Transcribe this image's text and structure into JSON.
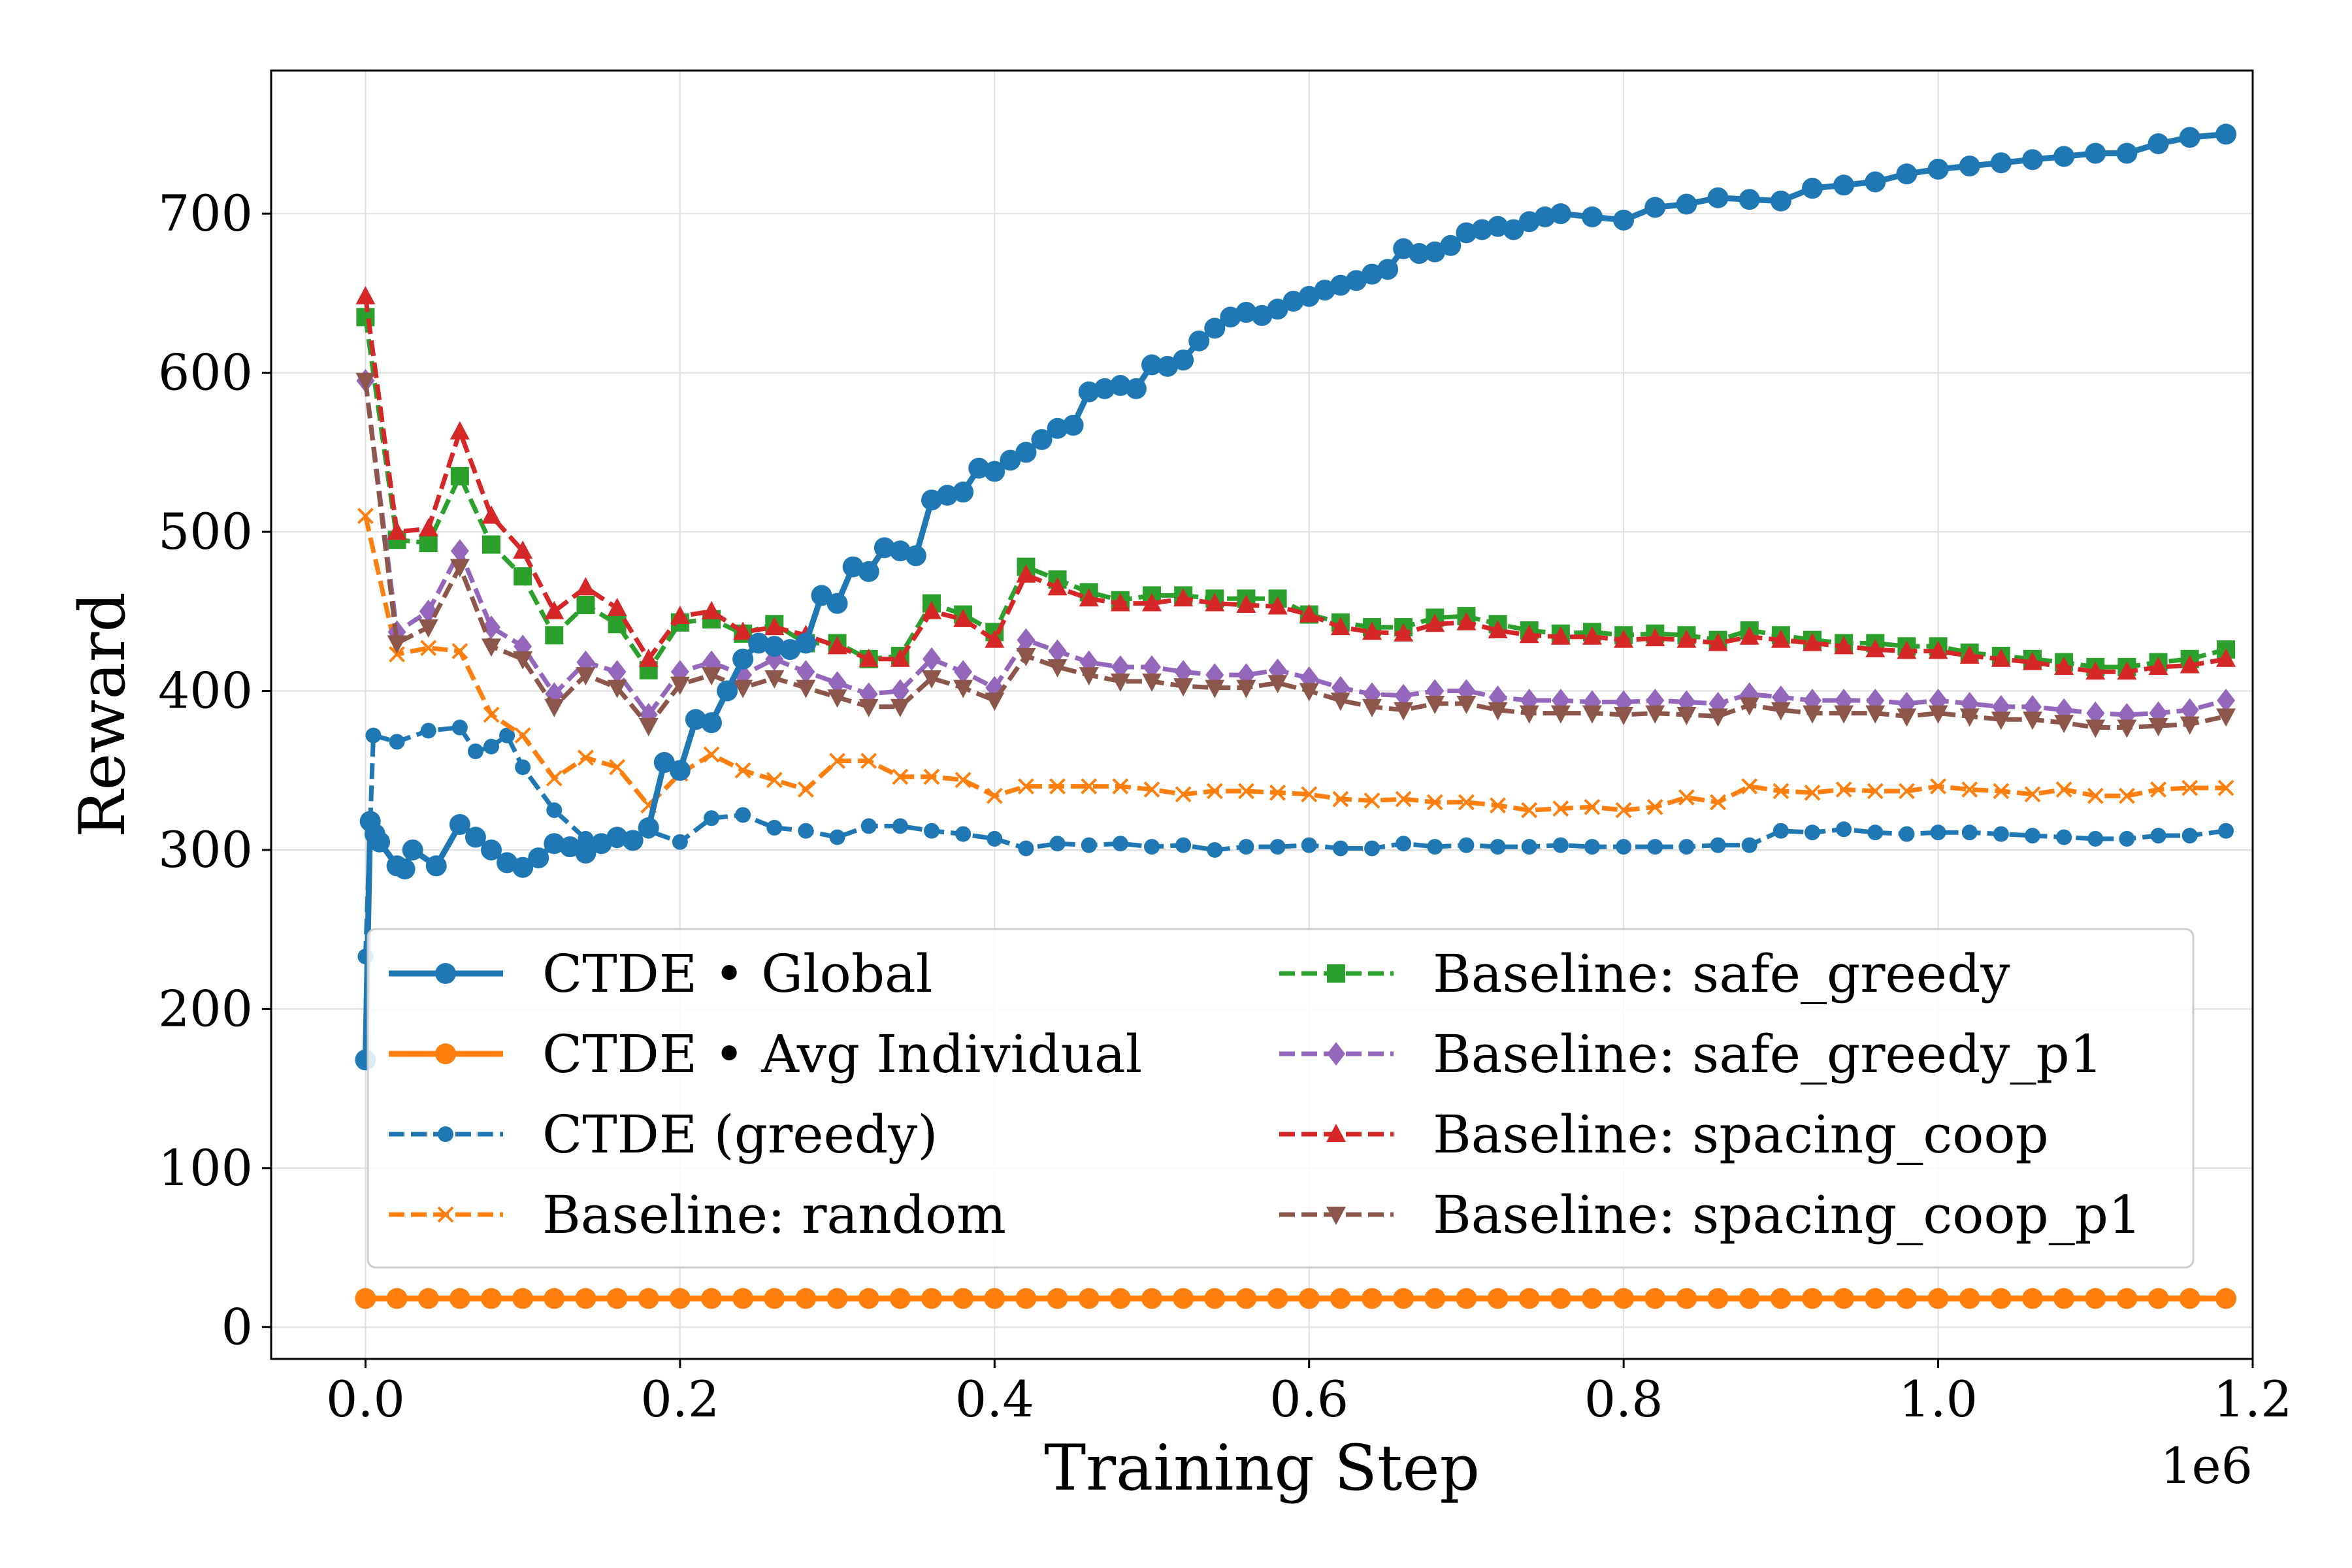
{
  "chart_data": {
    "type": "line",
    "xlabel": "Training Step",
    "ylabel": "Reward",
    "x_offset_label": "1e6",
    "xlim": [
      -0.06,
      1.2
    ],
    "ylim": [
      -20,
      790
    ],
    "xticks": [
      0.0,
      0.2,
      0.4,
      0.6,
      0.8,
      1.0,
      1.2
    ],
    "xtick_labels": [
      "0.0",
      "0.2",
      "0.4",
      "0.6",
      "0.8",
      "1.0",
      "1.2"
    ],
    "yticks": [
      0,
      100,
      200,
      300,
      400,
      500,
      600,
      700
    ],
    "ytick_labels": [
      "0",
      "100",
      "200",
      "300",
      "400",
      "500",
      "600",
      "700"
    ],
    "grid": true,
    "legend_position": "lower-center",
    "series": [
      {
        "name": "CTDE • Global",
        "color": "#1f77b4",
        "linestyle": "solid",
        "marker": "circle",
        "x": [
          0.0,
          0.003,
          0.006,
          0.009,
          0.02,
          0.025,
          0.03,
          0.045,
          0.06,
          0.07,
          0.08,
          0.09,
          0.1,
          0.11,
          0.12,
          0.13,
          0.14,
          0.15,
          0.16,
          0.17,
          0.18,
          0.19,
          0.2,
          0.21,
          0.22,
          0.23,
          0.24,
          0.25,
          0.26,
          0.27,
          0.28,
          0.29,
          0.3,
          0.31,
          0.32,
          0.33,
          0.34,
          0.35,
          0.36,
          0.37,
          0.38,
          0.39,
          0.4,
          0.41,
          0.42,
          0.43,
          0.44,
          0.45,
          0.46,
          0.47,
          0.48,
          0.49,
          0.5,
          0.51,
          0.52,
          0.53,
          0.54,
          0.55,
          0.56,
          0.57,
          0.58,
          0.59,
          0.6,
          0.61,
          0.62,
          0.63,
          0.64,
          0.65,
          0.66,
          0.67,
          0.68,
          0.69,
          0.7,
          0.71,
          0.72,
          0.73,
          0.74,
          0.75,
          0.76,
          0.78,
          0.8,
          0.82,
          0.84,
          0.86,
          0.88,
          0.9,
          0.92,
          0.94,
          0.96,
          0.98,
          1.0,
          1.02,
          1.04,
          1.06,
          1.08,
          1.1,
          1.12,
          1.14,
          1.16,
          1.183
        ],
        "y": [
          168,
          318,
          310,
          305,
          290,
          288,
          300,
          290,
          316,
          308,
          300,
          292,
          289,
          295,
          304,
          302,
          298,
          304,
          308,
          306,
          314,
          355,
          350,
          382,
          380,
          400,
          420,
          430,
          428,
          426,
          430,
          460,
          455,
          478,
          475,
          490,
          488,
          485,
          520,
          523,
          525,
          540,
          538,
          545,
          550,
          558,
          565,
          567,
          588,
          590,
          592,
          590,
          605,
          604,
          608,
          620,
          628,
          635,
          638,
          636,
          640,
          645,
          648,
          652,
          655,
          658,
          662,
          665,
          678,
          675,
          676,
          680,
          688,
          690,
          692,
          690,
          695,
          698,
          700,
          698,
          696,
          704,
          706,
          710,
          709,
          708,
          716,
          718,
          720,
          725,
          728,
          730,
          732,
          734,
          736,
          738,
          738,
          744,
          748,
          750
        ]
      },
      {
        "name": "CTDE • Avg Individual",
        "color": "#ff7f0e",
        "linestyle": "solid",
        "marker": "circle",
        "x": [
          0.0,
          0.02,
          0.04,
          0.06,
          0.08,
          0.1,
          0.12,
          0.14,
          0.16,
          0.18,
          0.2,
          0.22,
          0.24,
          0.26,
          0.28,
          0.3,
          0.32,
          0.34,
          0.36,
          0.38,
          0.4,
          0.42,
          0.44,
          0.46,
          0.48,
          0.5,
          0.52,
          0.54,
          0.56,
          0.58,
          0.6,
          0.62,
          0.64,
          0.66,
          0.68,
          0.7,
          0.72,
          0.74,
          0.76,
          0.78,
          0.8,
          0.82,
          0.84,
          0.86,
          0.88,
          0.9,
          0.92,
          0.94,
          0.96,
          0.98,
          1.0,
          1.02,
          1.04,
          1.06,
          1.08,
          1.1,
          1.12,
          1.14,
          1.16,
          1.183
        ],
        "y": [
          18,
          18,
          18,
          18,
          18,
          18,
          18,
          18,
          18,
          18,
          18,
          18,
          18,
          18,
          18,
          18,
          18,
          18,
          18,
          18,
          18,
          18,
          18,
          18,
          18,
          18,
          18,
          18,
          18,
          18,
          18,
          18,
          18,
          18,
          18,
          18,
          18,
          18,
          18,
          18,
          18,
          18,
          18,
          18,
          18,
          18,
          18,
          18,
          18,
          18,
          18,
          18,
          18,
          18,
          18,
          18,
          18,
          18,
          18,
          18
        ]
      },
      {
        "name": "CTDE (greedy)",
        "color": "#1f77b4",
        "linestyle": "dashed",
        "marker": "circle-small",
        "x": [
          0.0,
          0.005,
          0.02,
          0.04,
          0.06,
          0.07,
          0.08,
          0.09,
          0.1,
          0.12,
          0.14,
          0.16,
          0.18,
          0.2,
          0.22,
          0.24,
          0.26,
          0.28,
          0.3,
          0.32,
          0.34,
          0.36,
          0.38,
          0.4,
          0.42,
          0.44,
          0.46,
          0.48,
          0.5,
          0.52,
          0.54,
          0.56,
          0.58,
          0.6,
          0.62,
          0.64,
          0.66,
          0.68,
          0.7,
          0.72,
          0.74,
          0.76,
          0.78,
          0.8,
          0.82,
          0.84,
          0.86,
          0.88,
          0.9,
          0.92,
          0.94,
          0.96,
          0.98,
          1.0,
          1.02,
          1.04,
          1.06,
          1.08,
          1.1,
          1.12,
          1.14,
          1.16,
          1.183
        ],
        "y": [
          233,
          372,
          368,
          375,
          377,
          362,
          365,
          372,
          352,
          325,
          307,
          306,
          312,
          305,
          320,
          322,
          314,
          312,
          308,
          315,
          315,
          312,
          310,
          307,
          301,
          304,
          303,
          304,
          302,
          303,
          300,
          302,
          302,
          303,
          301,
          301,
          304,
          302,
          303,
          302,
          302,
          303,
          302,
          302,
          302,
          302,
          303,
          303,
          312,
          311,
          313,
          311,
          310,
          311,
          311,
          310,
          309,
          308,
          307,
          307,
          309,
          309,
          312
        ]
      },
      {
        "name": "Baseline: random",
        "color": "#ff7f0e",
        "linestyle": "dashed",
        "marker": "x",
        "x": [
          0.0,
          0.02,
          0.04,
          0.06,
          0.08,
          0.1,
          0.12,
          0.14,
          0.16,
          0.18,
          0.2,
          0.22,
          0.24,
          0.26,
          0.28,
          0.3,
          0.32,
          0.34,
          0.36,
          0.38,
          0.4,
          0.42,
          0.44,
          0.46,
          0.48,
          0.5,
          0.52,
          0.54,
          0.56,
          0.58,
          0.6,
          0.62,
          0.64,
          0.66,
          0.68,
          0.7,
          0.72,
          0.74,
          0.76,
          0.78,
          0.8,
          0.82,
          0.84,
          0.86,
          0.88,
          0.9,
          0.92,
          0.94,
          0.96,
          0.98,
          1.0,
          1.02,
          1.04,
          1.06,
          1.08,
          1.1,
          1.12,
          1.14,
          1.16,
          1.183
        ],
        "y": [
          510,
          423,
          427,
          425,
          385,
          372,
          345,
          358,
          352,
          328,
          348,
          360,
          350,
          344,
          338,
          356,
          356,
          346,
          346,
          344,
          334,
          340,
          340,
          340,
          340,
          338,
          335,
          337,
          337,
          336,
          335,
          332,
          331,
          332,
          330,
          330,
          328,
          325,
          326,
          327,
          325,
          327,
          333,
          330,
          340,
          337,
          336,
          338,
          337,
          337,
          340,
          338,
          337,
          335,
          338,
          334,
          334,
          338,
          339,
          339
        ]
      },
      {
        "name": "Baseline: safe_greedy",
        "color": "#2ca02c",
        "linestyle": "dashed",
        "marker": "square",
        "x": [
          0.0,
          0.02,
          0.04,
          0.06,
          0.08,
          0.1,
          0.12,
          0.14,
          0.16,
          0.18,
          0.2,
          0.22,
          0.24,
          0.26,
          0.28,
          0.3,
          0.32,
          0.34,
          0.36,
          0.38,
          0.4,
          0.42,
          0.44,
          0.46,
          0.48,
          0.5,
          0.52,
          0.54,
          0.56,
          0.58,
          0.6,
          0.62,
          0.64,
          0.66,
          0.68,
          0.7,
          0.72,
          0.74,
          0.76,
          0.78,
          0.8,
          0.82,
          0.84,
          0.86,
          0.88,
          0.9,
          0.92,
          0.94,
          0.96,
          0.98,
          1.0,
          1.02,
          1.04,
          1.06,
          1.08,
          1.1,
          1.12,
          1.14,
          1.16,
          1.183
        ],
        "y": [
          635,
          495,
          493,
          535,
          492,
          472,
          435,
          454,
          442,
          413,
          443,
          445,
          436,
          442,
          430,
          430,
          420,
          422,
          455,
          448,
          437,
          478,
          470,
          462,
          457,
          460,
          460,
          458,
          458,
          458,
          448,
          443,
          440,
          440,
          446,
          447,
          442,
          438,
          436,
          437,
          435,
          436,
          435,
          432,
          438,
          435,
          432,
          430,
          430,
          428,
          428,
          424,
          422,
          420,
          418,
          415,
          415,
          418,
          420,
          426
        ]
      },
      {
        "name": "Baseline: safe_greedy_p1",
        "color": "#9467bd",
        "linestyle": "dashed",
        "marker": "diamond",
        "x": [
          0.0,
          0.02,
          0.04,
          0.06,
          0.08,
          0.1,
          0.12,
          0.14,
          0.16,
          0.18,
          0.2,
          0.22,
          0.24,
          0.26,
          0.28,
          0.3,
          0.32,
          0.34,
          0.36,
          0.38,
          0.4,
          0.42,
          0.44,
          0.46,
          0.48,
          0.5,
          0.52,
          0.54,
          0.56,
          0.58,
          0.6,
          0.62,
          0.64,
          0.66,
          0.68,
          0.7,
          0.72,
          0.74,
          0.76,
          0.78,
          0.8,
          0.82,
          0.84,
          0.86,
          0.88,
          0.9,
          0.92,
          0.94,
          0.96,
          0.98,
          1.0,
          1.02,
          1.04,
          1.06,
          1.08,
          1.1,
          1.12,
          1.14,
          1.16,
          1.183
        ],
        "y": [
          595,
          437,
          450,
          488,
          440,
          428,
          398,
          418,
          412,
          385,
          412,
          418,
          410,
          420,
          412,
          405,
          398,
          400,
          420,
          412,
          402,
          432,
          425,
          418,
          415,
          415,
          412,
          410,
          410,
          413,
          408,
          402,
          398,
          397,
          400,
          400,
          396,
          394,
          394,
          393,
          393,
          394,
          393,
          392,
          398,
          396,
          394,
          394,
          394,
          392,
          394,
          392,
          390,
          390,
          388,
          386,
          385,
          386,
          388,
          394
        ]
      },
      {
        "name": "Baseline: spacing_coop",
        "color": "#d62728",
        "linestyle": "dashed",
        "marker": "triangle-up",
        "x": [
          0.0,
          0.02,
          0.04,
          0.06,
          0.08,
          0.1,
          0.12,
          0.14,
          0.16,
          0.18,
          0.2,
          0.22,
          0.24,
          0.26,
          0.28,
          0.3,
          0.32,
          0.34,
          0.36,
          0.38,
          0.4,
          0.42,
          0.44,
          0.46,
          0.48,
          0.5,
          0.52,
          0.54,
          0.56,
          0.58,
          0.6,
          0.62,
          0.64,
          0.66,
          0.68,
          0.7,
          0.72,
          0.74,
          0.76,
          0.78,
          0.8,
          0.82,
          0.84,
          0.86,
          0.88,
          0.9,
          0.92,
          0.94,
          0.96,
          0.98,
          1.0,
          1.02,
          1.04,
          1.06,
          1.08,
          1.1,
          1.12,
          1.14,
          1.16,
          1.183
        ],
        "y": [
          648,
          500,
          502,
          563,
          510,
          488,
          450,
          465,
          452,
          420,
          447,
          450,
          437,
          440,
          435,
          428,
          420,
          420,
          450,
          445,
          432,
          473,
          465,
          458,
          455,
          455,
          458,
          455,
          454,
          453,
          448,
          440,
          437,
          436,
          442,
          443,
          438,
          435,
          434,
          434,
          432,
          433,
          432,
          430,
          434,
          432,
          430,
          428,
          426,
          425,
          425,
          422,
          420,
          418,
          415,
          412,
          412,
          415,
          416,
          420
        ]
      },
      {
        "name": "Baseline: spacing_coop_p1",
        "color": "#8c564b",
        "linestyle": "dashed",
        "marker": "triangle-down",
        "x": [
          0.0,
          0.02,
          0.04,
          0.06,
          0.08,
          0.1,
          0.12,
          0.14,
          0.16,
          0.18,
          0.2,
          0.22,
          0.24,
          0.26,
          0.28,
          0.3,
          0.32,
          0.34,
          0.36,
          0.38,
          0.4,
          0.42,
          0.44,
          0.46,
          0.48,
          0.5,
          0.52,
          0.54,
          0.56,
          0.58,
          0.6,
          0.62,
          0.64,
          0.66,
          0.68,
          0.7,
          0.72,
          0.74,
          0.76,
          0.78,
          0.8,
          0.82,
          0.84,
          0.86,
          0.88,
          0.9,
          0.92,
          0.94,
          0.96,
          0.98,
          1.0,
          1.02,
          1.04,
          1.06,
          1.08,
          1.1,
          1.12,
          1.14,
          1.16,
          1.183
        ],
        "y": [
          595,
          430,
          440,
          478,
          428,
          420,
          390,
          410,
          402,
          378,
          404,
          410,
          402,
          408,
          402,
          396,
          390,
          390,
          408,
          402,
          394,
          422,
          415,
          410,
          406,
          406,
          403,
          402,
          402,
          405,
          400,
          394,
          390,
          388,
          392,
          392,
          388,
          386,
          386,
          386,
          385,
          386,
          385,
          384,
          391,
          388,
          386,
          386,
          386,
          384,
          386,
          384,
          382,
          382,
          380,
          377,
          377,
          378,
          379,
          384
        ]
      }
    ]
  }
}
